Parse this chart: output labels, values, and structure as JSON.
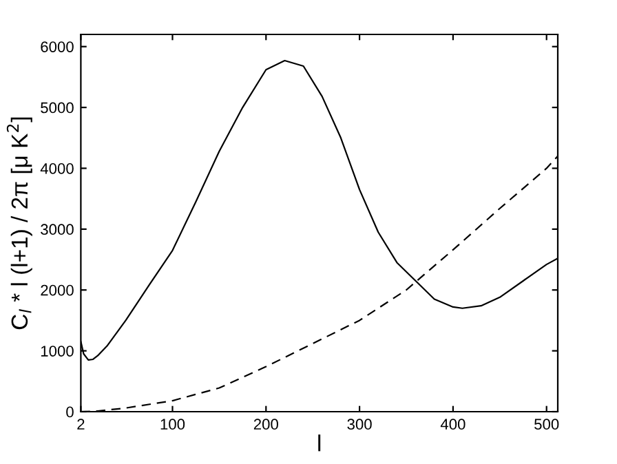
{
  "chart_data": {
    "type": "line",
    "xlabel": "l",
    "ylabel": "C$_{l}$ * l (l+1) / 2π [μ K$^{2}$]",
    "xlim": [
      2,
      512
    ],
    "ylim": [
      0,
      6200
    ],
    "xticks": [
      2,
      100,
      200,
      300,
      400,
      500
    ],
    "yticks": [
      0,
      1000,
      2000,
      3000,
      4000,
      5000,
      6000
    ],
    "grid": false,
    "legend": false,
    "series": [
      {
        "color": "#000000",
        "line_style": "solid",
        "x": [
          2,
          5,
          10,
          15,
          20,
          30,
          50,
          75,
          100,
          125,
          150,
          175,
          200,
          220,
          240,
          260,
          280,
          300,
          320,
          340,
          360,
          380,
          400,
          410,
          430,
          450,
          475,
          500,
          512
        ],
        "values": [
          1150,
          950,
          850,
          860,
          920,
          1080,
          1500,
          2080,
          2650,
          3450,
          4280,
          5000,
          5620,
          5770,
          5680,
          5180,
          4500,
          3650,
          2950,
          2450,
          2150,
          1850,
          1720,
          1700,
          1740,
          1880,
          2150,
          2420,
          2520
        ]
      },
      {
        "color": "#000000",
        "line_style": "dashed",
        "x": [
          2,
          20,
          50,
          100,
          150,
          200,
          250,
          300,
          350,
          400,
          450,
          500,
          512
        ],
        "values": [
          0,
          10,
          60,
          180,
          390,
          740,
          1120,
          1500,
          2000,
          2660,
          3340,
          4000,
          4200
        ]
      }
    ]
  }
}
